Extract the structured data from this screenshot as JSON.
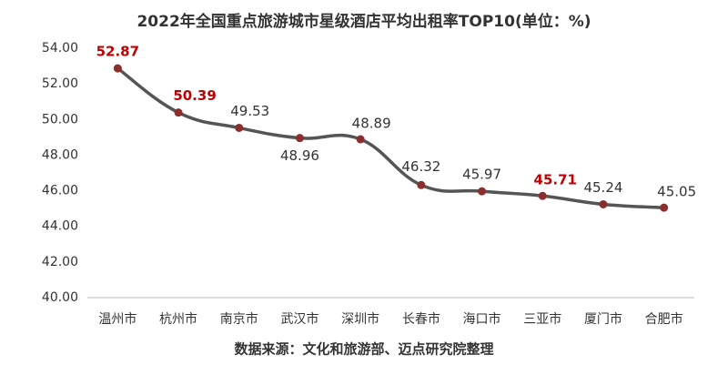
{
  "chart_data": {
    "type": "line",
    "title": "2022年全国重点旅游城市星级酒店平均出租率TOP10(单位：%)",
    "source": "数据来源：文化和旅游部、迈点研究院整理",
    "categories": [
      "温州市",
      "杭州市",
      "南京市",
      "武汉市",
      "深圳市",
      "长春市",
      "海口市",
      "三亚市",
      "厦门市",
      "合肥市"
    ],
    "series": [
      {
        "name": "平均出租率",
        "color": "#555555",
        "marker_color": "#8b2e2e",
        "values": [
          52.87,
          50.39,
          49.53,
          48.96,
          48.89,
          46.32,
          45.97,
          45.71,
          45.24,
          45.05
        ],
        "label_colors": [
          "#c00000",
          "#c00000",
          "#333333",
          "#333333",
          "#333333",
          "#333333",
          "#333333",
          "#c00000",
          "#333333",
          "#333333"
        ]
      }
    ],
    "ylim": [
      40,
      54
    ],
    "yticks": [
      {
        "value": 40,
        "label": "40.00"
      },
      {
        "value": 42,
        "label": "42.00"
      },
      {
        "value": 44,
        "label": "44.00"
      },
      {
        "value": 46,
        "label": "46.00"
      },
      {
        "value": 48,
        "label": "48.00"
      },
      {
        "value": 50,
        "label": "50.00"
      },
      {
        "value": 52,
        "label": "52.00"
      },
      {
        "value": 54,
        "label": "54.00"
      }
    ],
    "grid": false
  }
}
